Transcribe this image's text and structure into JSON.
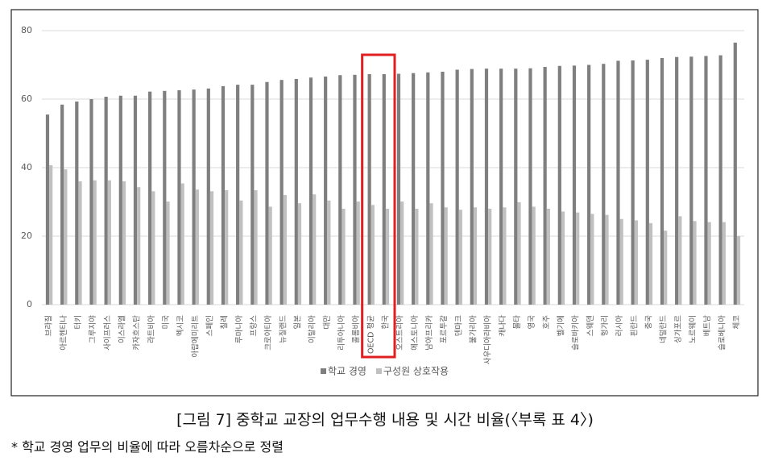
{
  "chart_data": {
    "type": "bar",
    "categories": [
      "브라질",
      "아르헨티나",
      "터키",
      "그루지야",
      "사이프러스",
      "이스라엘",
      "카자흐스탄",
      "라트비아",
      "미국",
      "멕시코",
      "아랍에미리트",
      "스페인",
      "칠레",
      "루마니아",
      "프랑스",
      "크로아티아",
      "뉴질랜드",
      "일본",
      "이탈리아",
      "대만",
      "리투아니아",
      "콜롬비아",
      "OECD 평균",
      "한국",
      "오스트리아",
      "에스토니아",
      "남아프리카",
      "포르투갈",
      "덴마크",
      "불가리아",
      "사우디아라비아",
      "캐나다",
      "몰타",
      "영국",
      "호주",
      "벨기에",
      "슬로바키아",
      "스웨덴",
      "헝가리",
      "러시아",
      "핀란드",
      "중국",
      "네덜란드",
      "싱가포르",
      "노르웨이",
      "베트남",
      "슬로베니아",
      "체코"
    ],
    "series": [
      {
        "name": "학교 경영",
        "color": "#7f7f7f",
        "values": [
          55.5,
          58.4,
          59.3,
          60,
          60.7,
          61,
          61,
          62.2,
          62.4,
          62.6,
          62.8,
          63.1,
          63.8,
          64.2,
          64.2,
          65,
          65.6,
          65.9,
          66.3,
          66.6,
          67,
          67.1,
          67.3,
          67.3,
          67.4,
          67.6,
          67.8,
          68,
          68.6,
          68.8,
          68.9,
          68.9,
          68.9,
          69,
          69.4,
          69.7,
          69.8,
          70,
          70.3,
          71.2,
          71.3,
          71.5,
          72,
          72.3,
          72.4,
          72.6,
          72.8,
          76.5
        ]
      },
      {
        "name": "구성원 상호작용",
        "color": "#c0c0c0",
        "values": [
          40.7,
          39.5,
          36,
          36.3,
          36.3,
          36,
          34.3,
          33.1,
          30.1,
          35.4,
          33.6,
          33.1,
          33.4,
          30.4,
          33.4,
          28.6,
          32,
          29.6,
          32.2,
          30.4,
          28,
          30.1,
          29.1,
          28,
          30.1,
          28,
          29.6,
          28.4,
          27.7,
          28.4,
          28,
          28.4,
          29.9,
          28.6,
          28,
          27.2,
          26.9,
          26.5,
          26.2,
          25,
          24.6,
          23.8,
          21.6,
          25.8,
          24.4,
          24.1,
          24.1,
          20
        ]
      }
    ],
    "ylim": [
      0,
      80
    ],
    "yticks": [
      0,
      20,
      40,
      60,
      80
    ],
    "grid": true,
    "legend": "bottom",
    "highlight": {
      "from": 22,
      "to": 23,
      "color": "#e02020"
    },
    "caption": "[그림 7] 중학교 교장의 업무수행 내용 및 시간 비율(〈부록 표 4〉)",
    "note": "* 학교 경영 업무의 비율에 따라 오름차순으로 정렬"
  }
}
